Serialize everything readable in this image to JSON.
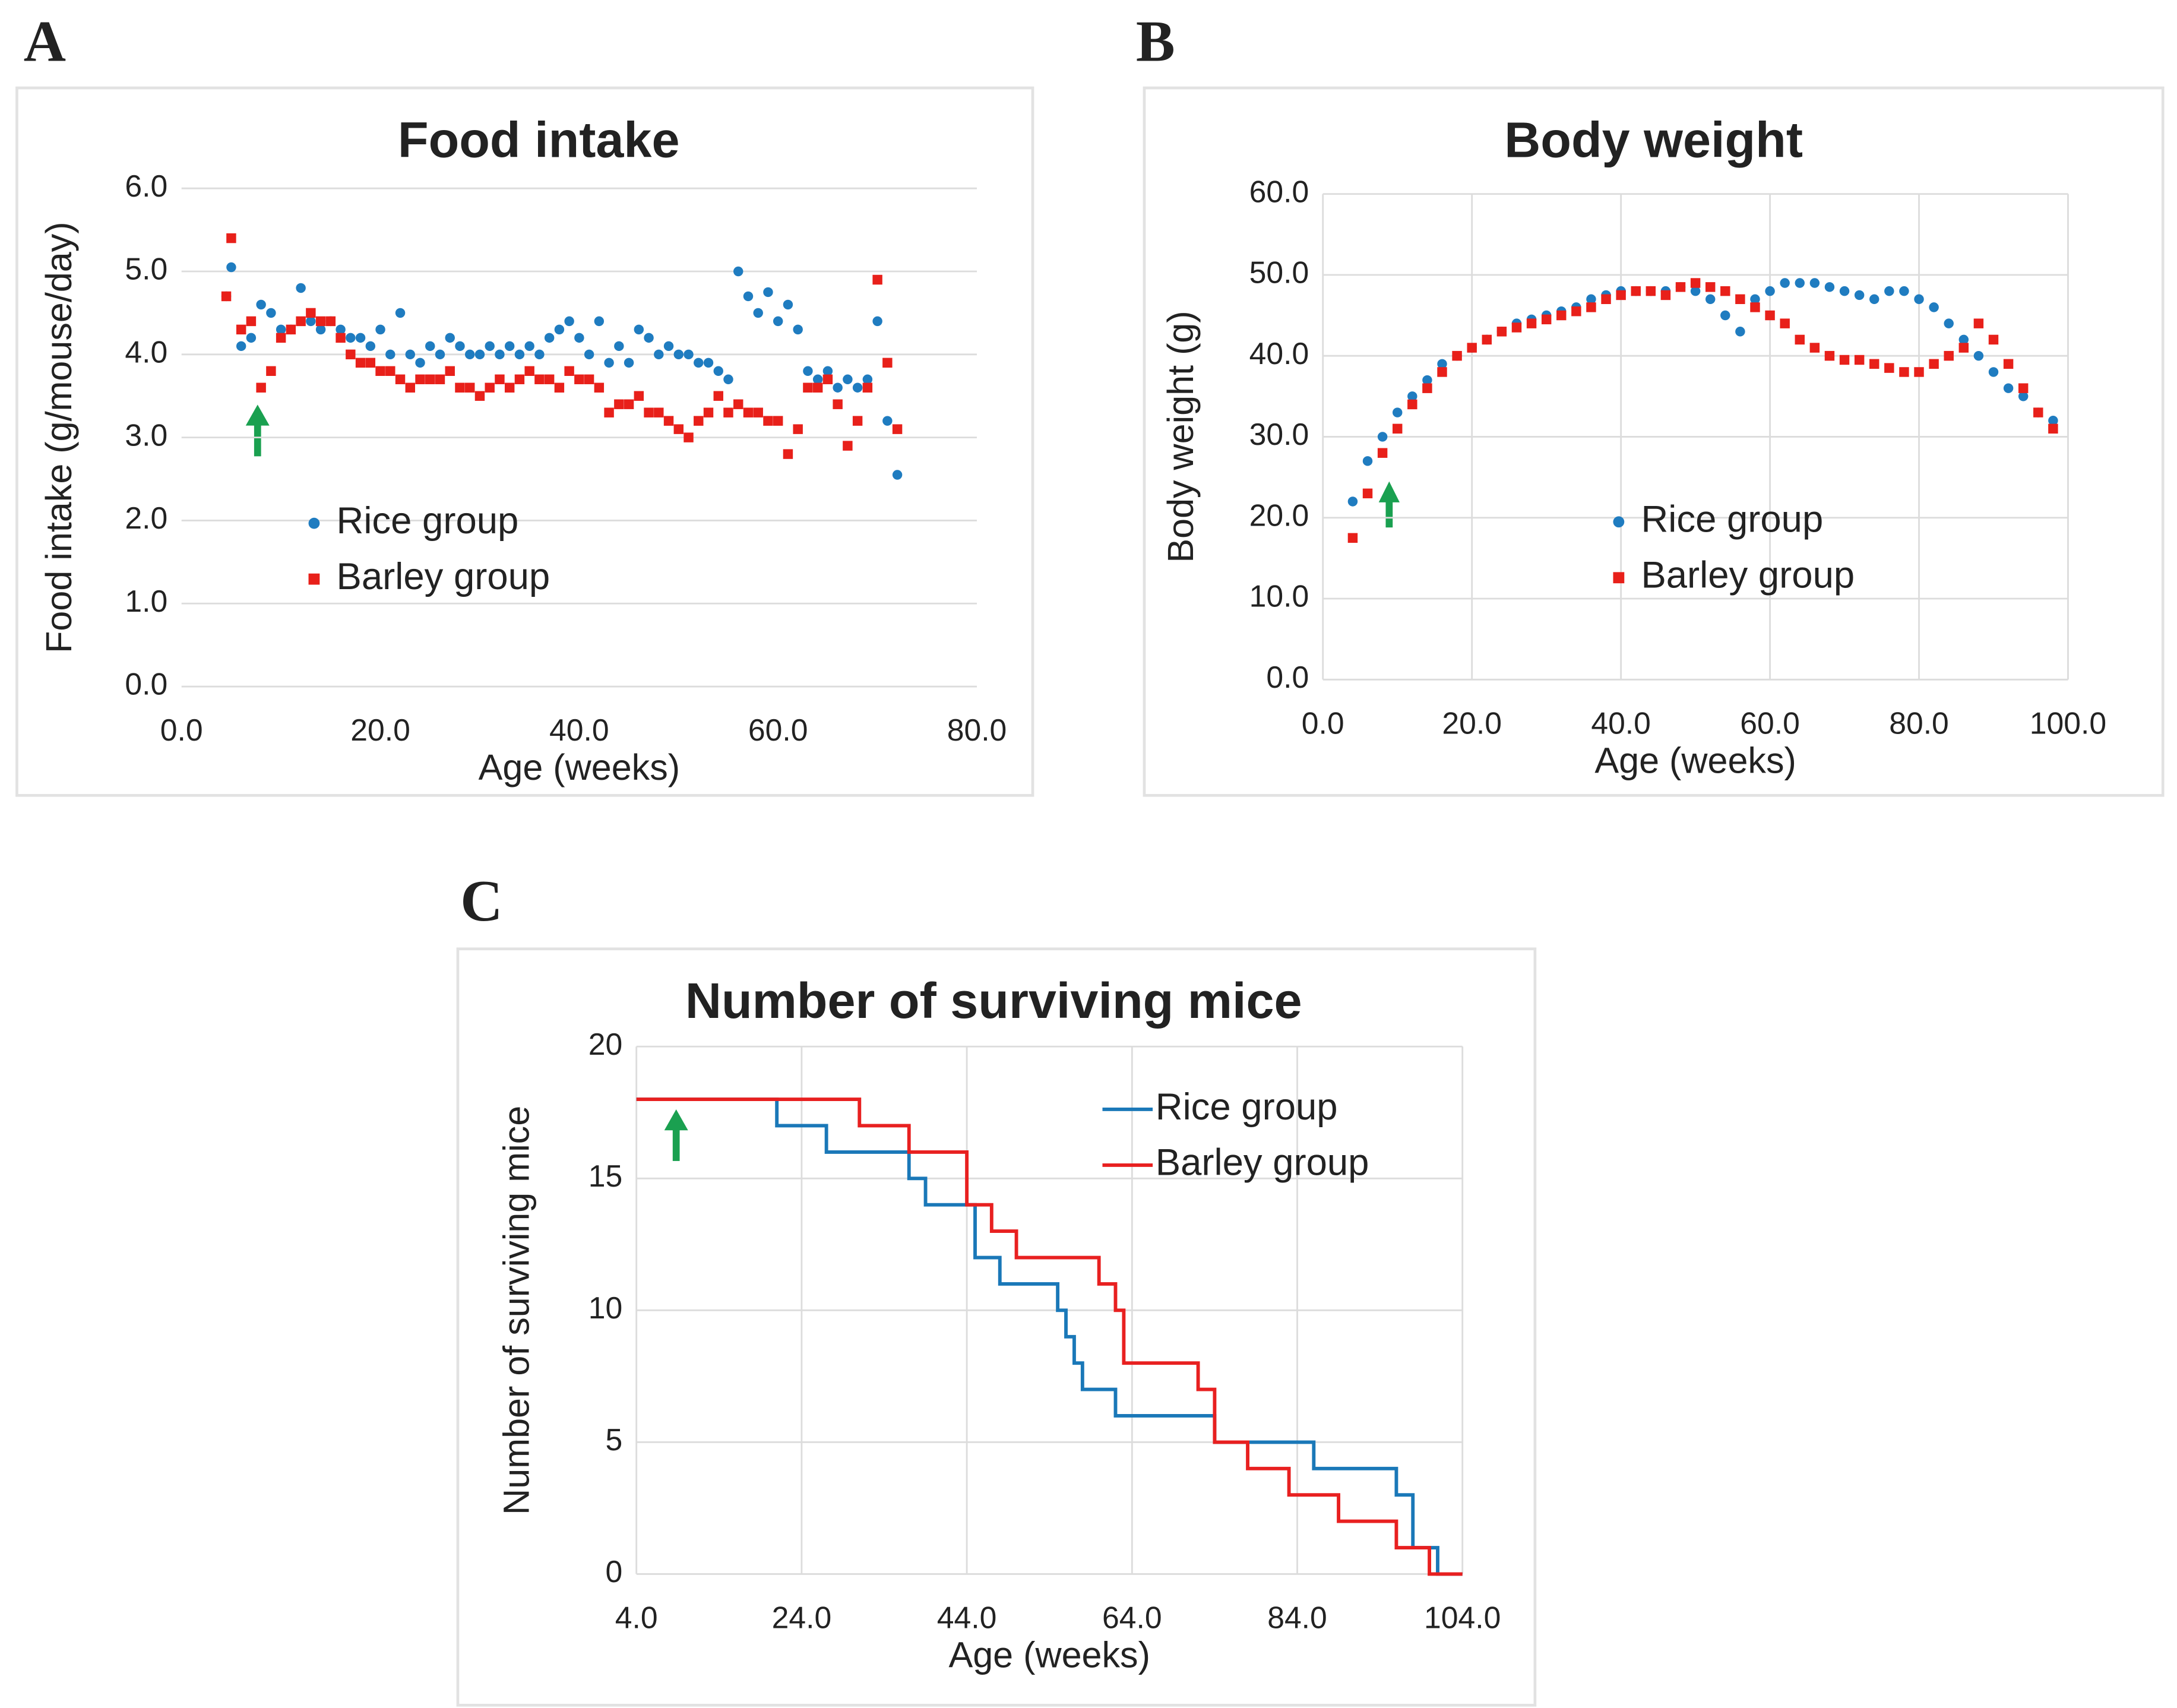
{
  "chart_data": [
    {
      "type": "scatter",
      "panel_label": "A",
      "title": "Food intake",
      "x_label": "Age (weeks)",
      "y_label": "Food intake (g/mouse/day)",
      "x": [
        4.5,
        5,
        6,
        7,
        8,
        9,
        10,
        11,
        12,
        13,
        14,
        15,
        16,
        17,
        18,
        19,
        20,
        21,
        22,
        23,
        24,
        25,
        26,
        27,
        28,
        29,
        30,
        31,
        32,
        33,
        34,
        35,
        36,
        37,
        38,
        39,
        40,
        41,
        42,
        43,
        44,
        45,
        46,
        47,
        48,
        49,
        50,
        51,
        52,
        53,
        54,
        55,
        56,
        57,
        58,
        59,
        60,
        61,
        62,
        63,
        64,
        65,
        66,
        67,
        68,
        69,
        70,
        71,
        72
      ],
      "series": [
        {
          "name": "Rice group",
          "color": "#1f7cc0",
          "marker": "circle",
          "values": [
            4.7,
            5.05,
            4.1,
            4.2,
            4.6,
            4.5,
            4.3,
            4.3,
            4.8,
            4.4,
            4.3,
            4.4,
            4.3,
            4.2,
            4.2,
            4.1,
            4.3,
            4.0,
            4.5,
            4.0,
            3.9,
            4.1,
            4.0,
            4.2,
            4.1,
            4.0,
            4.0,
            4.1,
            4.0,
            4.1,
            4.0,
            4.1,
            4.0,
            4.2,
            4.3,
            4.4,
            4.2,
            4.0,
            4.4,
            3.9,
            4.1,
            3.9,
            4.3,
            4.2,
            4.0,
            4.1,
            4.0,
            4.0,
            3.9,
            3.9,
            3.8,
            3.7,
            5.0,
            4.7,
            4.5,
            4.75,
            4.4,
            4.6,
            4.3,
            3.8,
            3.7,
            3.8,
            3.6,
            3.7,
            3.6,
            3.7,
            4.4,
            3.2,
            2.55
          ]
        },
        {
          "name": "Barley group",
          "color": "#e8201a",
          "marker": "square",
          "values": [
            4.7,
            5.4,
            4.3,
            4.4,
            3.6,
            3.8,
            4.2,
            4.3,
            4.4,
            4.5,
            4.4,
            4.4,
            4.2,
            4.0,
            3.9,
            3.9,
            3.8,
            3.8,
            3.7,
            3.6,
            3.7,
            3.7,
            3.7,
            3.8,
            3.6,
            3.6,
            3.5,
            3.6,
            3.7,
            3.6,
            3.7,
            3.8,
            3.7,
            3.7,
            3.6,
            3.8,
            3.7,
            3.7,
            3.6,
            3.3,
            3.4,
            3.4,
            3.5,
            3.3,
            3.3,
            3.2,
            3.1,
            3.0,
            3.2,
            3.3,
            3.5,
            3.3,
            3.4,
            3.3,
            3.3,
            3.2,
            3.2,
            2.8,
            3.1,
            3.6,
            3.6,
            3.7,
            3.4,
            2.9,
            3.2,
            3.6,
            4.9,
            3.9,
            3.1
          ]
        }
      ],
      "xlim": [
        0,
        80
      ],
      "xticks": [
        {
          "value": 0,
          "label": "0.0"
        },
        {
          "value": 20,
          "label": "20.0"
        },
        {
          "value": 40,
          "label": "40.0"
        },
        {
          "value": 60,
          "label": "60.0"
        },
        {
          "value": 80,
          "label": "80.0"
        }
      ],
      "ylim": [
        0,
        6
      ],
      "yticks": [
        {
          "value": 0,
          "label": "0.0"
        },
        {
          "value": 1,
          "label": "1.0"
        },
        {
          "value": 2,
          "label": "2.0"
        },
        {
          "value": 3,
          "label": "3.0"
        },
        {
          "value": 4,
          "label": "4.0"
        },
        {
          "value": 5,
          "label": "5.0"
        },
        {
          "value": 6,
          "label": "6.0"
        }
      ],
      "grid": "y",
      "legend": "lower-left"
    },
    {
      "type": "scatter",
      "panel_label": "B",
      "title": "Body weight",
      "x_label": "Age (weeks)",
      "y_label": "Body weight (g)",
      "x": [
        4,
        6,
        8,
        10,
        12,
        14,
        16,
        18,
        20,
        22,
        24,
        26,
        28,
        30,
        32,
        34,
        36,
        38,
        40,
        42,
        44,
        46,
        48,
        50,
        52,
        54,
        56,
        58,
        60,
        62,
        64,
        66,
        68,
        70,
        72,
        74,
        76,
        78,
        80,
        82,
        84,
        86,
        88,
        90,
        92,
        94,
        96,
        98
      ],
      "series": [
        {
          "name": "Rice group",
          "color": "#1f7cc0",
          "marker": "circle",
          "values": [
            22,
            27,
            30,
            33,
            35,
            37,
            39,
            40,
            41,
            42,
            43,
            44,
            44.5,
            45,
            45.5,
            46,
            47,
            47.5,
            48,
            48,
            48,
            48,
            48.5,
            48,
            47,
            45,
            43,
            47,
            48,
            49,
            49,
            49,
            48.5,
            48,
            47.5,
            47,
            48,
            48,
            47,
            46,
            44,
            42,
            40,
            38,
            36,
            35,
            33,
            32
          ]
        },
        {
          "name": "Barley group",
          "color": "#e8201a",
          "marker": "square",
          "values": [
            17.5,
            23,
            28,
            31,
            34,
            36,
            38,
            40,
            41,
            42,
            43,
            43.5,
            44,
            44.5,
            45,
            45.5,
            46,
            47,
            47.5,
            48,
            48,
            47.5,
            48.5,
            49,
            48.5,
            48,
            47,
            46,
            45,
            44,
            42,
            41,
            40,
            39.5,
            39.5,
            39,
            38.5,
            38,
            38,
            39,
            40,
            41,
            44,
            42,
            39,
            36,
            33,
            31
          ]
        }
      ],
      "xlim": [
        0,
        100
      ],
      "xticks": [
        {
          "value": 0,
          "label": "0.0"
        },
        {
          "value": 20,
          "label": "20.0"
        },
        {
          "value": 40,
          "label": "40.0"
        },
        {
          "value": 60,
          "label": "60.0"
        },
        {
          "value": 80,
          "label": "80.0"
        },
        {
          "value": 100,
          "label": "100.0"
        }
      ],
      "ylim": [
        0,
        60
      ],
      "yticks": [
        {
          "value": 0,
          "label": "0.0"
        },
        {
          "value": 10,
          "label": "10.0"
        },
        {
          "value": 20,
          "label": "20.0"
        },
        {
          "value": 30,
          "label": "30.0"
        },
        {
          "value": 40,
          "label": "40.0"
        },
        {
          "value": 50,
          "label": "50.0"
        },
        {
          "value": 60,
          "label": "60.0"
        }
      ],
      "grid": "both",
      "legend": "lower-center"
    },
    {
      "type": "step",
      "panel_label": "C",
      "title": "Number of surviving mice",
      "x_label": "Age (weeks)",
      "y_label": "Number of surviving mice",
      "series": [
        {
          "name": "Rice group",
          "color": "#1a78b8",
          "x": [
            4,
            21,
            27,
            37,
            39,
            41,
            45,
            46,
            48,
            55,
            56,
            57,
            58,
            62,
            74,
            86,
            96,
            98,
            101,
            104
          ],
          "values": [
            18,
            17,
            16,
            15,
            14,
            14,
            12,
            12,
            11,
            10,
            9,
            8,
            7,
            6,
            5,
            4,
            3,
            1,
            0,
            0
          ]
        },
        {
          "name": "Barley group",
          "color": "#e82020",
          "x": [
            4,
            31,
            37,
            44,
            47,
            50,
            53,
            60,
            62,
            63,
            65,
            72,
            74,
            78,
            83,
            89,
            96,
            100,
            104
          ],
          "values": [
            18,
            17,
            16,
            14,
            13,
            12,
            12,
            11,
            10,
            8,
            8,
            7,
            5,
            4,
            3,
            2,
            1,
            0,
            0
          ]
        }
      ],
      "xlim": [
        4,
        104
      ],
      "xticks": [
        {
          "value": 4,
          "label": "4.0"
        },
        {
          "value": 24,
          "label": "24.0"
        },
        {
          "value": 44,
          "label": "44.0"
        },
        {
          "value": 64,
          "label": "64.0"
        },
        {
          "value": 84,
          "label": "84.0"
        },
        {
          "value": 104,
          "label": "104.0"
        }
      ],
      "ylim": [
        0,
        20
      ],
      "yticks": [
        0,
        5,
        10,
        15,
        20
      ],
      "grid": "both",
      "legend": "upper-right"
    }
  ]
}
